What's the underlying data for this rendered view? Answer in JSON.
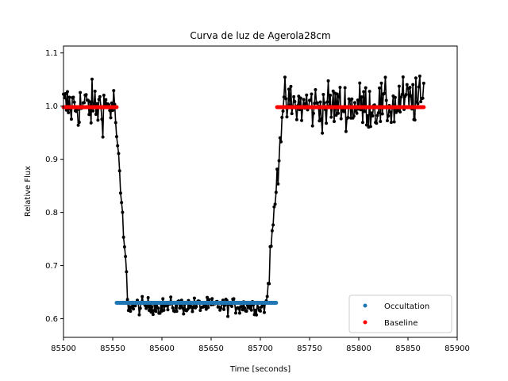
{
  "chart_data": {
    "type": "scatter",
    "title": "Curva de luz de Agerola28cm",
    "xlabel": "Time [seconds]",
    "ylabel": "Relative Flux",
    "xlim": [
      85500,
      85900
    ],
    "ylim": [
      0.565,
      1.113
    ],
    "xticks": [
      85500,
      85550,
      85600,
      85650,
      85700,
      85750,
      85800,
      85850,
      85900
    ],
    "yticks": [
      0.6,
      0.7,
      0.8,
      0.9,
      1.0,
      1.1
    ],
    "xtick_labels": [
      "85500",
      "85550",
      "85600",
      "85650",
      "85700",
      "85750",
      "85800",
      "85850",
      "85900"
    ],
    "ytick_labels": [
      "0.6",
      "0.7",
      "0.8",
      "0.9",
      "1.0",
      "1.1"
    ],
    "grid": false,
    "legend_position": "lower-right",
    "legend": [
      {
        "label": "Occultation",
        "color": "#1f77b4"
      },
      {
        "label": "Baseline",
        "color": "#ff0000"
      }
    ],
    "series": [
      {
        "name": "Occultation",
        "style": "dots",
        "color": "#1f77b4",
        "x_range": [
          85554,
          85716
        ],
        "value": 0.63
      },
      {
        "name": "Baseline",
        "style": "dots",
        "color": "#ff0000",
        "segments": [
          [
            85500,
            85554
          ],
          [
            85717,
            85866
          ]
        ],
        "value": 0.998
      },
      {
        "name": "Light curve",
        "style": "line-dots",
        "color": "#000000",
        "x_start": 85500,
        "x_end": 85866,
        "step": 1,
        "shape": {
          "ingress": [
            85552,
            85566
          ],
          "egress": [
            85706,
            85723
          ],
          "baseline_level": 1.0,
          "bottom_level": 0.624,
          "baseline_scatter": 0.04,
          "bottom_scatter": 0.014
        }
      }
    ]
  }
}
